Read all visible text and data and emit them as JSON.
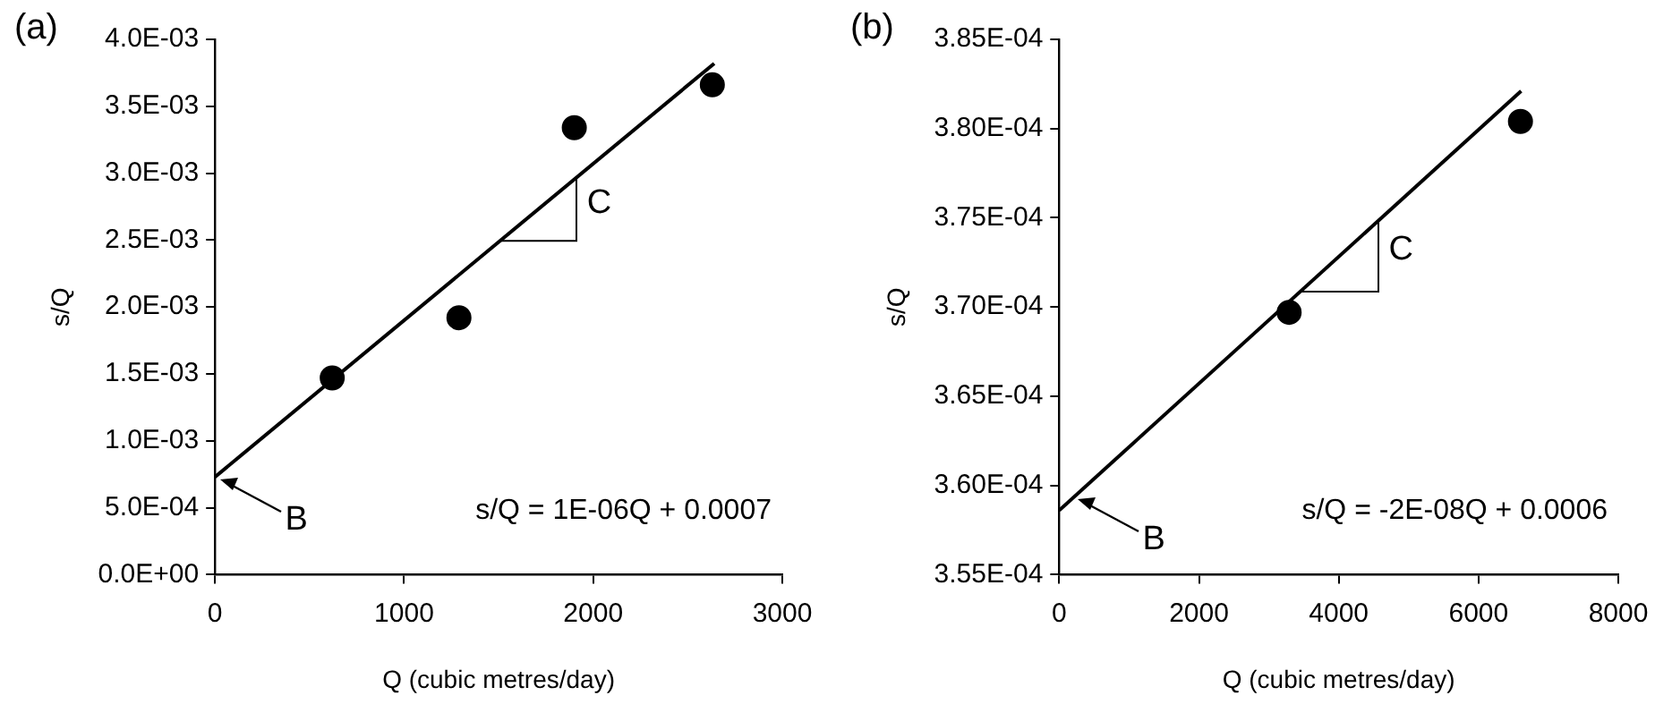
{
  "chart_data": [
    {
      "type": "scatter",
      "title": "(a)",
      "xlabel": "Q (cubic metres/day)",
      "ylabel": "s/Q",
      "legend": false,
      "grid": false,
      "xlim": [
        0,
        3000
      ],
      "xticks": [
        0,
        1000,
        2000,
        3000
      ],
      "ylim": [
        0,
        0.004
      ],
      "yticks": [
        {
          "value": 0,
          "label": "0.0E+00"
        },
        {
          "value": 0.0005,
          "label": "5.0E-04"
        },
        {
          "value": 0.001,
          "label": "1.0E-03"
        },
        {
          "value": 0.0015,
          "label": "1.5E-03"
        },
        {
          "value": 0.002,
          "label": "2.0E-03"
        },
        {
          "value": 0.0025,
          "label": "2.5E-03"
        },
        {
          "value": 0.003,
          "label": "3.0E-03"
        },
        {
          "value": 0.0035,
          "label": "3.5E-03"
        },
        {
          "value": 0.004,
          "label": "4.0E-03"
        }
      ],
      "series": [
        {
          "type": "scatter",
          "color": "#000000",
          "marker": "circle",
          "x": [
            620,
            1290,
            1900,
            2630
          ],
          "values": [
            0.00147,
            0.00192,
            0.00334,
            0.00366
          ]
        },
        {
          "type": "line",
          "color": "#000000",
          "marker": "none",
          "x": [
            0,
            2640
          ],
          "values": [
            0.00073,
            0.00382
          ]
        }
      ],
      "annotations": [
        {
          "text": "B",
          "x": 30,
          "y": 0.00071
        },
        {
          "text": "C",
          "x": 1910,
          "y": 0.00296
        },
        "s/Q = 1E-06Q + 0.0007"
      ]
    },
    {
      "type": "scatter",
      "title": "(b)",
      "xlabel": "Q (cubic metres/day)",
      "ylabel": "s/Q",
      "legend": false,
      "grid": false,
      "xlim": [
        0,
        8000
      ],
      "xticks": [
        0,
        2000,
        4000,
        6000,
        8000
      ],
      "ylim": [
        0.000355,
        0.000385
      ],
      "yticks": [
        {
          "value": 0.000355,
          "label": "3.55E-04"
        },
        {
          "value": 0.00036,
          "label": "3.60E-04"
        },
        {
          "value": 0.000365,
          "label": "3.65E-04"
        },
        {
          "value": 0.00037,
          "label": "3.70E-04"
        },
        {
          "value": 0.000375,
          "label": "3.75E-04"
        },
        {
          "value": 0.00038,
          "label": "3.80E-04"
        },
        {
          "value": 0.000385,
          "label": "3.85E-04"
        }
      ],
      "series": [
        {
          "type": "scatter",
          "color": "#000000",
          "marker": "circle",
          "x": [
            3290,
            6600
          ],
          "values": [
            0.0003697,
            0.0003804
          ]
        },
        {
          "type": "line",
          "color": "#000000",
          "marker": "none",
          "x": [
            0,
            6610
          ],
          "values": [
            0.0003586,
            0.0003821
          ]
        }
      ],
      "annotations": [
        {
          "text": "B",
          "x": 270,
          "y": 0.0003592
        },
        {
          "text": "C",
          "x": 4560,
          "y": 0.0003748
        },
        "s/Q = -2E-08Q + 0.0006"
      ]
    }
  ]
}
